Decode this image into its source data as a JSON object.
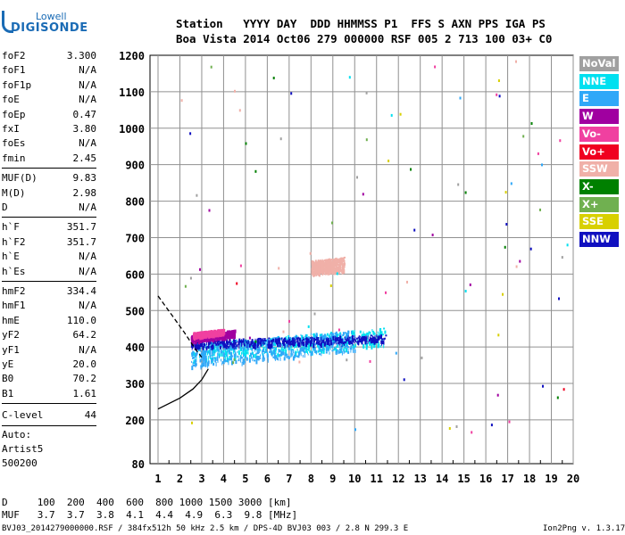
{
  "logo": {
    "line1": "Lowell",
    "line2": "DIGISONDE"
  },
  "header": {
    "labels_row": "Station   YYYY DAY  DDD HHMMSS P1  FFS S AXN PPS IGA PS",
    "values_row": "Boa Vista 2014 Oct06 279 000000 RSF 005 2 713 100 03+ C0"
  },
  "params": {
    "group1": [
      {
        "name": "foF2",
        "value": "3.300"
      },
      {
        "name": "foF1",
        "value": "N/A"
      },
      {
        "name": "foF1p",
        "value": "N/A"
      },
      {
        "name": "foE",
        "value": "N/A"
      },
      {
        "name": "foEp",
        "value": "0.47"
      },
      {
        "name": "fxI",
        "value": "3.80"
      },
      {
        "name": "foEs",
        "value": "N/A"
      },
      {
        "name": "fmin",
        "value": "2.45"
      }
    ],
    "group2": [
      {
        "name": "MUF(D)",
        "value": "9.83"
      },
      {
        "name": "M(D)",
        "value": "2.98"
      },
      {
        "name": "D",
        "value": "N/A"
      }
    ],
    "group3": [
      {
        "name": "h`F",
        "value": "351.7"
      },
      {
        "name": "h`F2",
        "value": "351.7"
      },
      {
        "name": "h`E",
        "value": "N/A"
      },
      {
        "name": "h`Es",
        "value": "N/A"
      }
    ],
    "group4": [
      {
        "name": "hmF2",
        "value": "334.4"
      },
      {
        "name": "hmF1",
        "value": "N/A"
      },
      {
        "name": "hmE",
        "value": "110.0"
      },
      {
        "name": "yF2",
        "value": "64.2"
      },
      {
        "name": "yF1",
        "value": "N/A"
      },
      {
        "name": "yE",
        "value": "20.0"
      },
      {
        "name": "B0",
        "value": "70.2"
      },
      {
        "name": "B1",
        "value": "1.61"
      }
    ],
    "clevel": {
      "name": "C-level",
      "value": "44"
    },
    "auto": [
      "Auto:",
      "Artist5",
      "500200"
    ]
  },
  "legend": [
    {
      "label": "NoVal",
      "color": "#a0a0a0"
    },
    {
      "label": "NNE",
      "color": "#00e0f0"
    },
    {
      "label": "E",
      "color": "#30a8f8"
    },
    {
      "label": "W",
      "color": "#a000a0"
    },
    {
      "label": "Vo-",
      "color": "#f040a0"
    },
    {
      "label": "Vo+",
      "color": "#f00020"
    },
    {
      "label": "SSW",
      "color": "#f0b0a8"
    },
    {
      "label": "X-",
      "color": "#008000"
    },
    {
      "label": "X+",
      "color": "#70b050"
    },
    {
      "label": "SSE",
      "color": "#d8d000"
    },
    {
      "label": "NNW",
      "color": "#1010c0"
    }
  ],
  "muf_table": {
    "d_row": "D     100  200  400  600  800 1000 1500 3000 [km]",
    "muf_row": "MUF   3.7  3.7  3.8  4.1  4.4  4.9  6.3  9.8 [MHz]"
  },
  "footer": {
    "left": "BVJ03_2014279000000.RSF / 384fx512h 50 kHz 2.5 km / DPS-4D BVJ03 003 / 2.8 N 299.3 E",
    "right": "Ion2Png v. 1.3.17"
  },
  "chart_data": {
    "type": "scatter",
    "title": "",
    "xlabel": "",
    "ylabel": "",
    "xlim": [
      1,
      20
    ],
    "ylim": [
      80,
      1200
    ],
    "x_ticks": [
      1,
      2,
      3,
      4,
      5,
      6,
      7,
      8,
      9,
      10,
      11,
      12,
      13,
      14,
      15,
      16,
      17,
      18,
      19,
      20
    ],
    "y_ticks": [
      80,
      200,
      300,
      400,
      500,
      600,
      700,
      800,
      900,
      1000,
      1100,
      1200
    ],
    "grid": true,
    "legend_position": "right",
    "traces": [
      {
        "name": "NNE",
        "color": "#00e0f0",
        "xrange": [
          2.5,
          11.4
        ],
        "y_start": 385,
        "y_end": 430,
        "spread": 25
      },
      {
        "name": "E",
        "color": "#30a8f8",
        "xrange": [
          2.5,
          10.0
        ],
        "y_start": 375,
        "y_end": 420,
        "spread": 30
      },
      {
        "name": "NNW",
        "color": "#1010c0",
        "xrange": [
          2.5,
          11.4
        ],
        "y_start": 410,
        "y_end": 425,
        "spread": 10
      },
      {
        "name": "W",
        "color": "#a000a0",
        "xrange": [
          2.5,
          4.5
        ],
        "y_start": 425,
        "y_end": 440,
        "spread": 8
      },
      {
        "name": "Vo-",
        "color": "#f040a0",
        "xrange": [
          2.6,
          4.0
        ],
        "y_start": 435,
        "y_end": 445,
        "spread": 6
      },
      {
        "name": "SSW",
        "color": "#f0b0a8",
        "xrange": [
          8.0,
          9.5
        ],
        "y_start": 620,
        "y_end": 630,
        "spread": 18
      }
    ],
    "profile_curve": [
      [
        1,
        230
      ],
      [
        2,
        260
      ],
      [
        2.6,
        285
      ],
      [
        3.0,
        310
      ],
      [
        3.2,
        330
      ],
      [
        3.3,
        340
      ]
    ],
    "dashed_curve": [
      [
        1,
        540
      ],
      [
        1.6,
        490
      ],
      [
        2.2,
        440
      ],
      [
        2.7,
        395
      ],
      [
        3.0,
        372
      ]
    ]
  }
}
